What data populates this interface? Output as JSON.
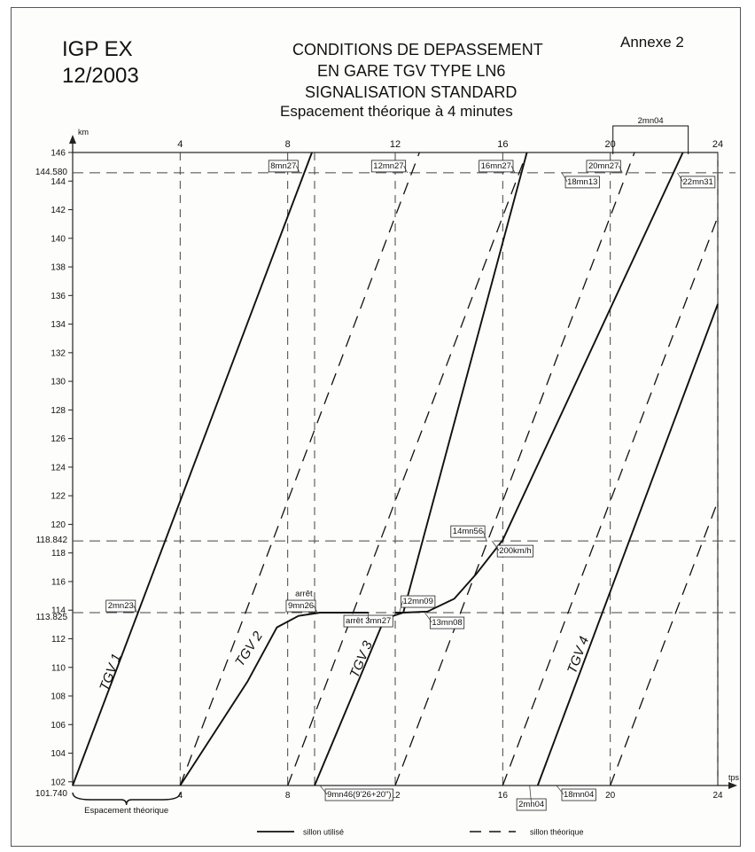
{
  "header": {
    "doc_code": "IGP EX",
    "doc_date": "12/2003",
    "annex": "Annexe 2",
    "title_line1": "CONDITIONS DE DEPASSEMENT",
    "title_line2": "EN GARE TGV TYPE LN6",
    "title_line3": "SIGNALISATION STANDARD",
    "subtitle": "Espacement théorique à 4 minutes"
  },
  "chart_data": {
    "type": "line",
    "title": "CONDITIONS DE DEPASSEMENT EN GARE TGV TYPE LN6 SIGNALISATION STANDARD",
    "subtitle": "Espacement théorique à 4 minutes",
    "xlabel": "tps",
    "ylabel": "km",
    "xlim": [
      0,
      24
    ],
    "ylim": [
      101.74,
      146
    ],
    "x_ticks_top": [
      "4",
      "8",
      "12",
      "16",
      "20",
      "24"
    ],
    "x_ticks_bottom": [
      "4",
      "8",
      "12",
      "16",
      "20",
      "24"
    ],
    "y_ticks": [
      "102",
      "104",
      "106",
      "108",
      "110",
      "112",
      "114",
      "116",
      "118",
      "120",
      "122",
      "124",
      "126",
      "128",
      "130",
      "132",
      "134",
      "136",
      "138",
      "140",
      "142",
      "144",
      "146"
    ],
    "y_special_labels": [
      "101.740",
      "113.825",
      "118.842",
      "144.580"
    ],
    "vertical_ref_x": [
      4,
      8,
      9,
      12,
      16,
      20,
      24
    ],
    "horizontal_ref_y": [
      113.825,
      118.842,
      144.58
    ],
    "legend": {
      "solid": "sillon utilisé",
      "dashed": "sillon théorique",
      "placement": "bottom"
    },
    "series": [
      {
        "name": "TGV 1",
        "style": "solid",
        "label_at": [
          1.3,
          108.3
        ],
        "points": [
          [
            0,
            101.74
          ],
          [
            8.9,
            146
          ]
        ]
      },
      {
        "name": "TGV 2",
        "style": "solid",
        "label_at": [
          6.3,
          110
        ],
        "points": [
          [
            4,
            101.74
          ],
          [
            6.5,
            109
          ],
          [
            7.6,
            112.8
          ],
          [
            8.4,
            113.6
          ],
          [
            9.2,
            113.825
          ],
          [
            11,
            113.825
          ]
        ]
      },
      {
        "name": "TGV 3",
        "style": "solid",
        "label_at": [
          10.6,
          109.2
        ],
        "points": [
          [
            9,
            101.74
          ],
          [
            11.6,
            113.4
          ],
          [
            12.3,
            113.825
          ],
          [
            13.2,
            113.9
          ],
          [
            14.2,
            114.8
          ],
          [
            15,
            116.5
          ],
          [
            16,
            118.9
          ],
          [
            22.7,
            146
          ]
        ]
      },
      {
        "name": "TGV 4",
        "style": "solid",
        "label_at": [
          18.7,
          109.5
        ],
        "points": [
          [
            17.3,
            101.74
          ],
          [
            24,
            135.4
          ]
        ]
      },
      {
        "name": "",
        "style": "solid",
        "points": [
          [
            12,
            113.825
          ],
          [
            12.3,
            113.825
          ],
          [
            16.9,
            146
          ]
        ]
      },
      {
        "name": "",
        "style": "dashed",
        "points": [
          [
            4,
            101.74
          ],
          [
            12.9,
            146
          ]
        ]
      },
      {
        "name": "",
        "style": "dashed",
        "points": [
          [
            8,
            101.74
          ],
          [
            16.9,
            146
          ]
        ]
      },
      {
        "name": "",
        "style": "dashed",
        "points": [
          [
            12,
            101.74
          ],
          [
            20.9,
            146
          ]
        ]
      },
      {
        "name": "",
        "style": "dashed",
        "points": [
          [
            16,
            101.74
          ],
          [
            24,
            141.5
          ]
        ]
      },
      {
        "name": "",
        "style": "dashed",
        "points": [
          [
            20,
            101.74
          ],
          [
            24,
            121.6
          ]
        ]
      }
    ],
    "annotations": [
      {
        "text": "8mn27",
        "x": 8.45,
        "y": 144.58,
        "side": "left"
      },
      {
        "text": "12mn27",
        "x": 12.45,
        "y": 144.58,
        "side": "left"
      },
      {
        "text": "16mn27",
        "x": 16.45,
        "y": 144.58,
        "side": "left"
      },
      {
        "text": "20mn27",
        "x": 20.45,
        "y": 144.58,
        "side": "left"
      },
      {
        "text": "18mn13",
        "x": 18.2,
        "y": 144.58,
        "side": "right"
      },
      {
        "text": "22mn31",
        "x": 22.5,
        "y": 144.58,
        "side": "right"
      },
      {
        "text": "2mn04",
        "x": 21.5,
        "y": 146,
        "side": "top"
      },
      {
        "text": "2mn23",
        "x": 2.4,
        "y": 113.825,
        "side": "left"
      },
      {
        "text": "arrêt",
        "x": 8.6,
        "y": 114.6,
        "side": "top"
      },
      {
        "text": "9mn26",
        "x": 9.1,
        "y": 113.825,
        "side": "left"
      },
      {
        "text": "12mn09",
        "x": 12.15,
        "y": 113.825,
        "side": "right-up"
      },
      {
        "text": "arrêt 3mn27",
        "x": 11,
        "y": 113.825,
        "side": "box-below"
      },
      {
        "text": "13mn08",
        "x": 13.1,
        "y": 113.825,
        "side": "right-down"
      },
      {
        "text": "14mn56",
        "x": 15.4,
        "y": 118.842,
        "side": "left-up"
      },
      {
        "text": "200km/h",
        "x": 15.6,
        "y": 118.842,
        "side": "right-down"
      },
      {
        "text": "9mn46(9'26+20\")",
        "x": 9.2,
        "y": 101.74,
        "side": "below"
      },
      {
        "text": "18mn04",
        "x": 18,
        "y": 101.74,
        "side": "below"
      },
      {
        "text": "2mn04",
        "x": 17,
        "y": 101.74,
        "side": "below-left"
      },
      {
        "text": "Espacement théorique",
        "x": 2,
        "y": 101.74,
        "side": "brace-below"
      }
    ]
  }
}
